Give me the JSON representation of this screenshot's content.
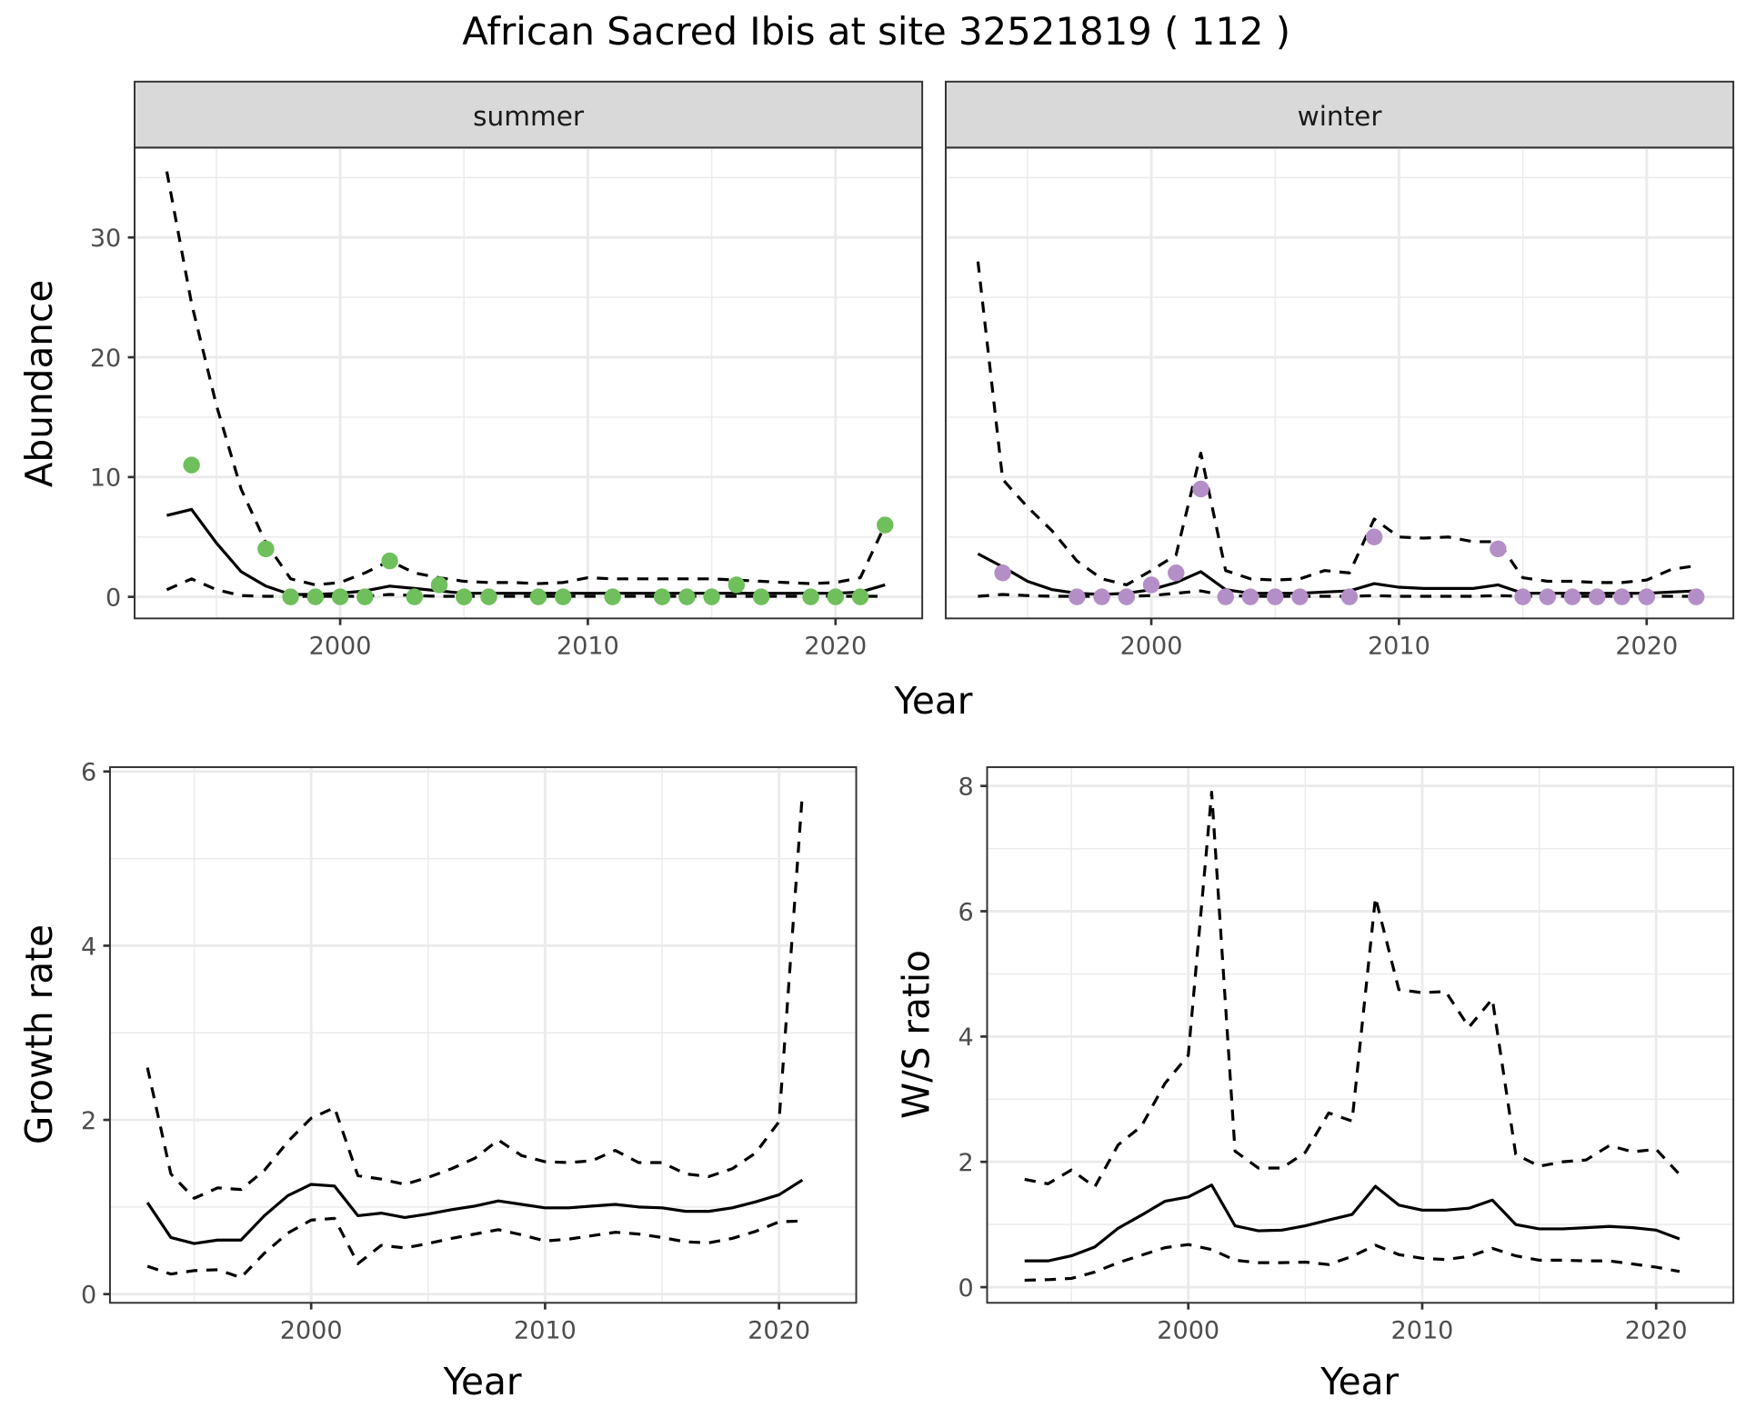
{
  "chart_data": {
    "title": "African Sacred Ibis at site 32521819 ( 112 )",
    "panels": [
      {
        "id": "summer",
        "type": "line",
        "strip_label": "summer",
        "xlabel": "Year",
        "ylabel": "Abundance",
        "xlim": [
          1991.7,
          2023.5
        ],
        "ylim": [
          -1.8,
          37.5
        ],
        "xticks": [
          2000,
          2010,
          2020
        ],
        "yticks": [
          0,
          10,
          20,
          30
        ],
        "point_color": "#6fbf5c",
        "years": [
          1993,
          1994,
          1995,
          1996,
          1997,
          1998,
          1999,
          2000,
          2001,
          2002,
          2003,
          2004,
          2005,
          2006,
          2007,
          2008,
          2009,
          2010,
          2011,
          2012,
          2013,
          2014,
          2015,
          2016,
          2017,
          2018,
          2019,
          2020,
          2021,
          2022
        ],
        "mean": [
          6.8,
          7.3,
          4.5,
          2.1,
          0.9,
          0.2,
          0.2,
          0.3,
          0.5,
          0.9,
          0.7,
          0.5,
          0.3,
          0.3,
          0.3,
          0.3,
          0.3,
          0.3,
          0.3,
          0.3,
          0.3,
          0.3,
          0.3,
          0.3,
          0.3,
          0.3,
          0.3,
          0.3,
          0.4,
          1.0
        ],
        "upper": [
          35.5,
          24.5,
          16.0,
          9.0,
          4.5,
          1.5,
          1.0,
          1.2,
          2.0,
          3.0,
          2.0,
          1.6,
          1.3,
          1.2,
          1.2,
          1.1,
          1.2,
          1.6,
          1.5,
          1.5,
          1.5,
          1.5,
          1.5,
          1.4,
          1.3,
          1.2,
          1.1,
          1.2,
          1.6,
          6.0
        ],
        "lower": [
          0.6,
          1.5,
          0.6,
          0.1,
          0.05,
          0.05,
          0.05,
          0.05,
          0.05,
          0.2,
          0.1,
          0.05,
          0.05,
          0.05,
          0.05,
          0.05,
          0.05,
          0.05,
          0.05,
          0.05,
          0.05,
          0.05,
          0.05,
          0.05,
          0.05,
          0.05,
          0.05,
          0.05,
          0.05,
          0.05
        ],
        "points": {
          "years": [
            1994,
            1997,
            1998,
            1999,
            2000,
            2001,
            2002,
            2003,
            2004,
            2005,
            2006,
            2008,
            2009,
            2011,
            2013,
            2014,
            2015,
            2016,
            2017,
            2019,
            2020,
            2021,
            2022
          ],
          "values": [
            11,
            4,
            0,
            0,
            0,
            0,
            3,
            0,
            1,
            0,
            0,
            0,
            0,
            0,
            0,
            0,
            0,
            1,
            0,
            0,
            0,
            0,
            6
          ]
        }
      },
      {
        "id": "winter",
        "type": "line",
        "strip_label": "winter",
        "xlabel": "Year",
        "ylabel": "Abundance",
        "xlim": [
          1991.7,
          2023.5
        ],
        "ylim": [
          -1.8,
          37.5
        ],
        "xticks": [
          2000,
          2010,
          2020
        ],
        "yticks": [
          0,
          10,
          20,
          30
        ],
        "point_color": "#b48fc7",
        "years": [
          1993,
          1994,
          1995,
          1996,
          1997,
          1998,
          1999,
          2000,
          2001,
          2002,
          2003,
          2004,
          2005,
          2006,
          2007,
          2008,
          2009,
          2010,
          2011,
          2012,
          2013,
          2014,
          2015,
          2016,
          2017,
          2018,
          2019,
          2020,
          2021,
          2022
        ],
        "mean": [
          3.6,
          2.5,
          1.3,
          0.6,
          0.3,
          0.2,
          0.3,
          0.6,
          1.2,
          2.1,
          0.6,
          0.3,
          0.3,
          0.3,
          0.4,
          0.5,
          1.1,
          0.8,
          0.7,
          0.7,
          0.7,
          1.0,
          0.3,
          0.3,
          0.3,
          0.3,
          0.3,
          0.3,
          0.4,
          0.5
        ],
        "upper": [
          28.0,
          9.8,
          7.5,
          5.5,
          3.0,
          1.5,
          1.0,
          2.2,
          3.5,
          12.0,
          2.2,
          1.5,
          1.4,
          1.5,
          2.2,
          2.0,
          6.5,
          5.0,
          4.9,
          5.0,
          4.6,
          4.6,
          1.6,
          1.3,
          1.3,
          1.2,
          1.2,
          1.4,
          2.3,
          2.6
        ],
        "lower": [
          0.05,
          0.2,
          0.1,
          0.05,
          0.05,
          0.05,
          0.05,
          0.1,
          0.3,
          0.5,
          0.1,
          0.05,
          0.05,
          0.05,
          0.05,
          0.05,
          0.1,
          0.05,
          0.05,
          0.05,
          0.05,
          0.1,
          0.05,
          0.05,
          0.05,
          0.05,
          0.05,
          0.05,
          0.05,
          0.05
        ],
        "points": {
          "years": [
            1994,
            1997,
            1998,
            1999,
            2000,
            2001,
            2002,
            2003,
            2004,
            2005,
            2006,
            2008,
            2009,
            2014,
            2015,
            2016,
            2017,
            2018,
            2019,
            2020,
            2022
          ],
          "values": [
            2,
            0,
            0,
            0,
            1,
            2,
            9,
            0,
            0,
            0,
            0,
            0,
            5,
            4,
            0,
            0,
            0,
            0,
            0,
            0,
            0
          ]
        }
      },
      {
        "id": "growth",
        "type": "line",
        "xlabel": "Year",
        "ylabel": "Growth rate",
        "xlim": [
          1991.4,
          2023.3
        ],
        "ylim": [
          -0.1,
          6.05
        ],
        "xticks": [
          2000,
          2010,
          2020
        ],
        "yticks": [
          0,
          2,
          4,
          6
        ],
        "years": [
          1993,
          1994,
          1995,
          1996,
          1997,
          1998,
          1999,
          2000,
          2001,
          2002,
          2003,
          2004,
          2005,
          2006,
          2007,
          2008,
          2009,
          2010,
          2011,
          2012,
          2013,
          2014,
          2015,
          2016,
          2017,
          2018,
          2019,
          2020,
          2021
        ],
        "mean": [
          1.05,
          0.65,
          0.58,
          0.62,
          0.62,
          0.9,
          1.13,
          1.26,
          1.24,
          0.9,
          0.93,
          0.88,
          0.92,
          0.97,
          1.01,
          1.07,
          1.03,
          0.99,
          0.99,
          1.01,
          1.03,
          1.0,
          0.99,
          0.95,
          0.95,
          0.99,
          1.06,
          1.14,
          1.31
        ],
        "upper": [
          2.6,
          1.38,
          1.1,
          1.22,
          1.2,
          1.42,
          1.75,
          2.02,
          2.14,
          1.36,
          1.32,
          1.26,
          1.34,
          1.44,
          1.56,
          1.77,
          1.59,
          1.52,
          1.51,
          1.53,
          1.65,
          1.51,
          1.51,
          1.38,
          1.35,
          1.44,
          1.62,
          1.98,
          5.75
        ],
        "lower": [
          0.32,
          0.23,
          0.27,
          0.28,
          0.19,
          0.47,
          0.7,
          0.85,
          0.87,
          0.35,
          0.56,
          0.53,
          0.58,
          0.64,
          0.69,
          0.74,
          0.68,
          0.61,
          0.63,
          0.67,
          0.71,
          0.69,
          0.65,
          0.6,
          0.59,
          0.64,
          0.72,
          0.83,
          0.84
        ]
      },
      {
        "id": "ws_ratio",
        "type": "line",
        "xlabel": "Year",
        "ylabel": "W/S ratio",
        "xlim": [
          1991.4,
          2023.3
        ],
        "ylim": [
          -0.25,
          8.3
        ],
        "xticks": [
          2000,
          2010,
          2020
        ],
        "yticks": [
          0,
          2,
          4,
          6,
          8
        ],
        "years": [
          1993,
          1994,
          1995,
          1996,
          1997,
          1998,
          1999,
          2000,
          2001,
          2002,
          2003,
          2004,
          2005,
          2006,
          2007,
          2008,
          2009,
          2010,
          2011,
          2012,
          2013,
          2014,
          2015,
          2016,
          2017,
          2018,
          2019,
          2020,
          2021
        ],
        "mean": [
          0.42,
          0.42,
          0.5,
          0.64,
          0.94,
          1.15,
          1.37,
          1.44,
          1.63,
          0.98,
          0.9,
          0.91,
          0.98,
          1.07,
          1.16,
          1.61,
          1.31,
          1.23,
          1.23,
          1.26,
          1.39,
          1.0,
          0.93,
          0.93,
          0.95,
          0.97,
          0.95,
          0.91,
          0.77
        ],
        "upper": [
          1.72,
          1.65,
          1.87,
          1.6,
          2.27,
          2.57,
          3.25,
          3.7,
          7.9,
          2.17,
          1.9,
          1.9,
          2.15,
          2.78,
          2.65,
          6.22,
          4.75,
          4.7,
          4.72,
          4.15,
          4.6,
          2.12,
          1.93,
          2.0,
          2.03,
          2.26,
          2.16,
          2.2,
          1.8
        ],
        "lower": [
          0.11,
          0.12,
          0.14,
          0.24,
          0.39,
          0.51,
          0.63,
          0.68,
          0.6,
          0.43,
          0.39,
          0.39,
          0.4,
          0.36,
          0.49,
          0.67,
          0.52,
          0.46,
          0.44,
          0.49,
          0.62,
          0.5,
          0.43,
          0.43,
          0.42,
          0.42,
          0.37,
          0.32,
          0.25
        ]
      }
    ]
  }
}
